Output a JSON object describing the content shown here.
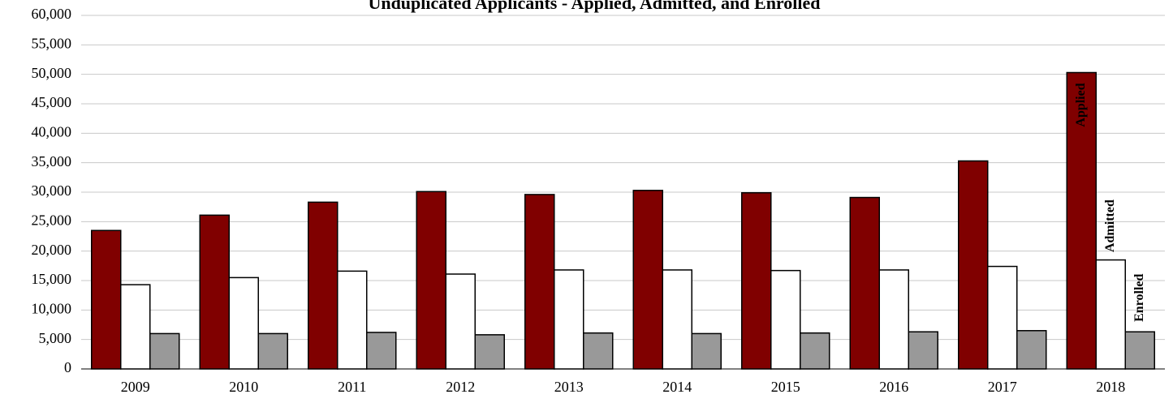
{
  "chart_data": {
    "type": "bar",
    "title": "Unduplicated Applicants - Applied, Admitted, and Enrolled",
    "categories": [
      "2009",
      "2010",
      "2011",
      "2012",
      "2013",
      "2014",
      "2015",
      "2016",
      "2017",
      "2018"
    ],
    "series": [
      {
        "name": "Applied",
        "color": "#800000",
        "values": [
          23500,
          26100,
          28300,
          30100,
          29600,
          30300,
          29900,
          29100,
          35300,
          50300
        ]
      },
      {
        "name": "Admitted",
        "color": "#ffffff",
        "values": [
          14300,
          15500,
          16600,
          16100,
          16800,
          16800,
          16700,
          16800,
          17400,
          18500
        ]
      },
      {
        "name": "Enrolled",
        "color": "#999999",
        "values": [
          6000,
          6000,
          6200,
          5800,
          6100,
          6000,
          6100,
          6300,
          6500,
          6300
        ]
      }
    ],
    "ylim": [
      0,
      60000
    ],
    "yticks": [
      0,
      {
        "value": 5000,
        "label": "5,000"
      },
      {
        "value": 10000,
        "label": "10,000"
      },
      {
        "value": 15000,
        "label": "15,000"
      },
      {
        "value": 20000,
        "label": "20,000"
      },
      {
        "value": 25000,
        "label": "25,000"
      },
      {
        "value": 30000,
        "label": "30,000"
      },
      {
        "value": 35000,
        "label": "35,000"
      },
      {
        "value": 40000,
        "label": "40,000"
      },
      {
        "value": 45000,
        "label": "45,000"
      },
      {
        "value": 50000,
        "label": "50,000"
      },
      {
        "value": 55000,
        "label": "55,000"
      },
      {
        "value": 60000,
        "label": "60,000"
      }
    ],
    "grid": true
  }
}
